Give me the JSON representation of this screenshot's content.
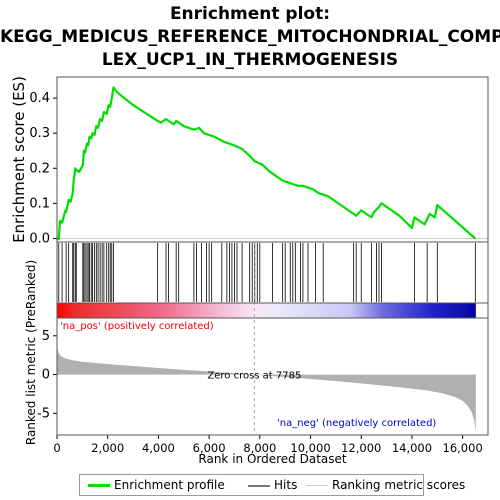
{
  "title_lines": [
    "Enrichment plot:",
    "KEGG_MEDICUS_REFERENCE_MITOCHONDRIAL_COMP",
    "LEX_UCP1_IN_THERMOGENESIS"
  ],
  "legend": {
    "profile": "Enrichment profile",
    "hits": "Hits",
    "metric": "Ranking metric scores"
  },
  "colors": {
    "profile": "#00dd00",
    "hits": "#000000",
    "metric_fill": "#b0b0b0",
    "zero_line": "#aaaaaa",
    "pos_label": "#ee0000",
    "neg_label": "#0000cc"
  },
  "chart_data": [
    {
      "type": "line",
      "name": "enrichment",
      "ylabel": "Enrichment score (ES)",
      "xlim": [
        0,
        17000
      ],
      "ylim": [
        -0.01,
        0.46
      ],
      "yticks": [
        0.0,
        0.1,
        0.2,
        0.3,
        0.4
      ],
      "ytick_labels": [
        "0.0",
        "0.1",
        "0.2",
        "0.3",
        "0.4"
      ],
      "series": [
        {
          "x": [
            0,
            70,
            120,
            200,
            330,
            360,
            460,
            540,
            620,
            660,
            720,
            760,
            880,
            1020,
            1060,
            1110,
            1180,
            1230,
            1280,
            1350,
            1400,
            1480,
            1550,
            1620,
            1700,
            1780,
            1850,
            1960,
            2040,
            2100,
            2160,
            2230,
            2400,
            3000,
            3970,
            4100,
            4300,
            4400,
            4500,
            4600,
            4700,
            4900,
            5000,
            5400,
            5600,
            5800,
            6000,
            6200,
            6600,
            6800,
            7000,
            7300,
            7600,
            7800,
            8100,
            8400,
            8600,
            8900,
            9100,
            9300,
            9500,
            9700,
            9900,
            10100,
            10300,
            10500,
            10700,
            10900,
            11100,
            11400,
            11700,
            11800,
            12000,
            12200,
            12400,
            12500,
            12700,
            12800,
            13000,
            13500,
            14000,
            14100,
            14300,
            14500,
            14700,
            14900,
            15000,
            16500
          ],
          "y": [
            0.0,
            -0.002,
            0.05,
            0.045,
            0.08,
            0.075,
            0.11,
            0.105,
            0.13,
            0.165,
            0.2,
            0.195,
            0.19,
            0.21,
            0.25,
            0.245,
            0.27,
            0.265,
            0.29,
            0.285,
            0.3,
            0.295,
            0.32,
            0.315,
            0.34,
            0.335,
            0.36,
            0.355,
            0.38,
            0.375,
            0.4,
            0.43,
            0.415,
            0.38,
            0.335,
            0.33,
            0.34,
            0.335,
            0.33,
            0.325,
            0.335,
            0.325,
            0.32,
            0.31,
            0.315,
            0.3,
            0.295,
            0.29,
            0.275,
            0.27,
            0.265,
            0.255,
            0.235,
            0.22,
            0.21,
            0.19,
            0.18,
            0.165,
            0.16,
            0.155,
            0.15,
            0.15,
            0.145,
            0.14,
            0.13,
            0.125,
            0.12,
            0.11,
            0.1,
            0.085,
            0.07,
            0.065,
            0.08,
            0.07,
            0.06,
            0.075,
            0.09,
            0.1,
            0.09,
            0.065,
            0.03,
            0.06,
            0.05,
            0.04,
            0.07,
            0.06,
            0.095,
            0.0
          ]
        }
      ]
    },
    {
      "type": "bar",
      "name": "hits",
      "hit_ranks": [
        70,
        200,
        360,
        460,
        620,
        660,
        720,
        760,
        1020,
        1060,
        1110,
        1180,
        1230,
        1280,
        1350,
        1400,
        1480,
        1550,
        1620,
        1700,
        1780,
        1850,
        1960,
        2040,
        2100,
        2160,
        2230,
        3970,
        4300,
        4400,
        4700,
        4800,
        5400,
        5500,
        5700,
        5900,
        6000,
        6100,
        6500,
        6700,
        6800,
        6900,
        7000,
        7100,
        7300,
        7600,
        7700,
        7800,
        7900,
        8000,
        8500,
        8900,
        9000,
        9200,
        9300,
        9400,
        9600,
        9700,
        9900,
        10200,
        10500,
        11700,
        11800,
        12000,
        12400,
        12600,
        12700,
        12800,
        14100,
        14600,
        15000,
        16500
      ]
    },
    {
      "type": "area",
      "name": "ranking_metric",
      "ylabel": "Ranked list metric (PreRanked)",
      "xlabel": "Rank in Ordered Dataset",
      "xlim": [
        0,
        17000
      ],
      "ylim": [
        -7.8,
        7.3
      ],
      "yticks": [
        -5,
        0,
        5
      ],
      "ytick_labels": [
        "-5",
        "0",
        "5"
      ],
      "xticks": [
        0,
        2000,
        4000,
        6000,
        8000,
        10000,
        12000,
        14000,
        16000
      ],
      "xtick_labels": [
        "0",
        "2,000",
        "4,000",
        "6,000",
        "8,000",
        "10,000",
        "12,000",
        "14,000",
        "16,000"
      ],
      "x": [
        0,
        20,
        60,
        150,
        300,
        600,
        1000,
        2000,
        3000,
        4000,
        5000,
        6000,
        7000,
        7785,
        8500,
        9500,
        10500,
        11500,
        12500,
        13500,
        14500,
        15200,
        15700,
        16000,
        16200,
        16350,
        16450,
        16520
      ],
      "y": [
        6.3,
        3.4,
        2.8,
        2.4,
        2.1,
        1.85,
        1.65,
        1.35,
        1.1,
        0.85,
        0.6,
        0.4,
        0.2,
        0.0,
        -0.2,
        -0.45,
        -0.7,
        -1.0,
        -1.3,
        -1.65,
        -2.0,
        -2.4,
        -2.9,
        -3.4,
        -4.0,
        -4.8,
        -5.8,
        -7.4
      ],
      "zero_cross_label": "Zero cross at 7785",
      "zero_cross_rank": 7785,
      "pos_label": "'na_pos' (positively correlated)",
      "neg_label": "'na_neg' (negatively correlated)"
    }
  ]
}
